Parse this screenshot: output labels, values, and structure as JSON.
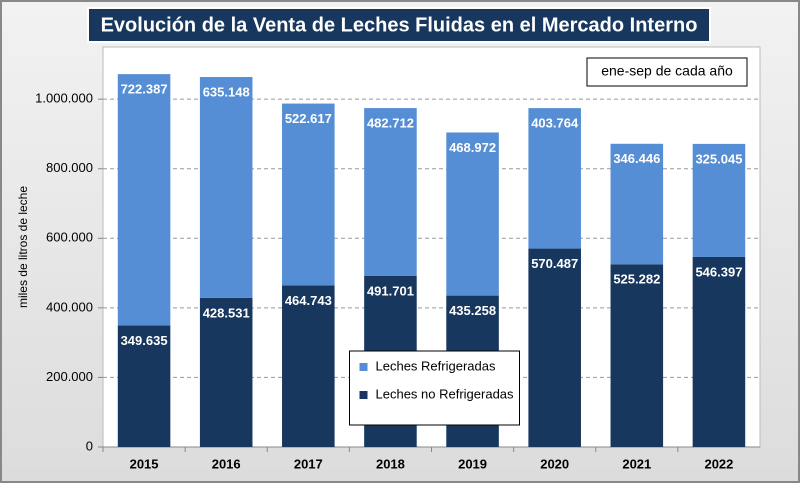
{
  "chart_data": {
    "type": "stacked_bar",
    "title": "Evolución de la Venta de Leches Fluidas en el Mercado Interno",
    "annotation": "ene-sep de cada año",
    "y_label": "miles de litros de leche",
    "categories": [
      "2015",
      "2016",
      "2017",
      "2018",
      "2019",
      "2020",
      "2021",
      "2022"
    ],
    "series": [
      {
        "name": "Leches no Refrigeradas",
        "color": "#17375e",
        "values": [
          349635,
          428531,
          464743,
          491701,
          435258,
          570487,
          525282,
          546397
        ],
        "value_labels": [
          "349.635",
          "428.531",
          "464.743",
          "491.701",
          "435.258",
          "570.487",
          "525.282",
          "546.397"
        ]
      },
      {
        "name": "Leches Refrigeradas",
        "color": "#558ed5",
        "values": [
          722387,
          635148,
          522617,
          482712,
          468972,
          403764,
          346446,
          325045
        ],
        "value_labels": [
          "722.387",
          "635.148",
          "522.617",
          "482.712",
          "468.972",
          "403.764",
          "346.446",
          "325.045"
        ]
      }
    ],
    "ylim": [
      0,
      1150000
    ],
    "yticks": [
      0,
      {
        "value": 200000,
        "label": "200.000"
      },
      {
        "value": 400000,
        "label": "400.000"
      },
      {
        "value": 600000,
        "label": "600.000"
      },
      {
        "value": 800000,
        "label": "800.000"
      },
      {
        "value": 1000000,
        "label": "1.000.000"
      }
    ],
    "grid": true,
    "legend": "center"
  }
}
